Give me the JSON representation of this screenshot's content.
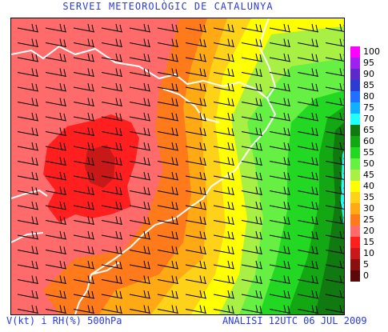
{
  "header": {
    "title": "SERVEI METEOROLÒGIC DE CATALUNYA"
  },
  "footer": {
    "field_label": "V(kt) i RH(%) 500hPa",
    "analysis_label": "ANÀLISI 12UTC 06 JUL 2009"
  },
  "legend": {
    "variable": "RH (%)",
    "items": [
      {
        "label": "100",
        "color": "#ff00ff"
      },
      {
        "label": "95",
        "color": "#a020f0"
      },
      {
        "label": "90",
        "color": "#5a2bc8"
      },
      {
        "label": "85",
        "color": "#2b3cd0"
      },
      {
        "label": "80",
        "color": "#2070ff"
      },
      {
        "label": "75",
        "color": "#10b0ff"
      },
      {
        "label": "70",
        "color": "#20ffff"
      },
      {
        "label": "65",
        "color": "#107a10"
      },
      {
        "label": "60",
        "color": "#13a813"
      },
      {
        "label": "55",
        "color": "#22d822"
      },
      {
        "label": "50",
        "color": "#66f044"
      },
      {
        "label": "45",
        "color": "#a8f044"
      },
      {
        "label": "40",
        "color": "#ffff00"
      },
      {
        "label": "35",
        "color": "#ffd21a"
      },
      {
        "label": "30",
        "color": "#ffaa14"
      },
      {
        "label": "25",
        "color": "#ff7a1a"
      },
      {
        "label": "20",
        "color": "#ff6a6a"
      },
      {
        "label": "15",
        "color": "#ff1f1f"
      },
      {
        "label": "10",
        "color": "#c81818"
      },
      {
        "label": "5",
        "color": "#8a1010"
      },
      {
        "label": "0",
        "color": "#5a0808"
      }
    ]
  },
  "map": {
    "wind_barbs": "westerly wind barbs across whole domain",
    "coastline_color": "#ffffff"
  }
}
